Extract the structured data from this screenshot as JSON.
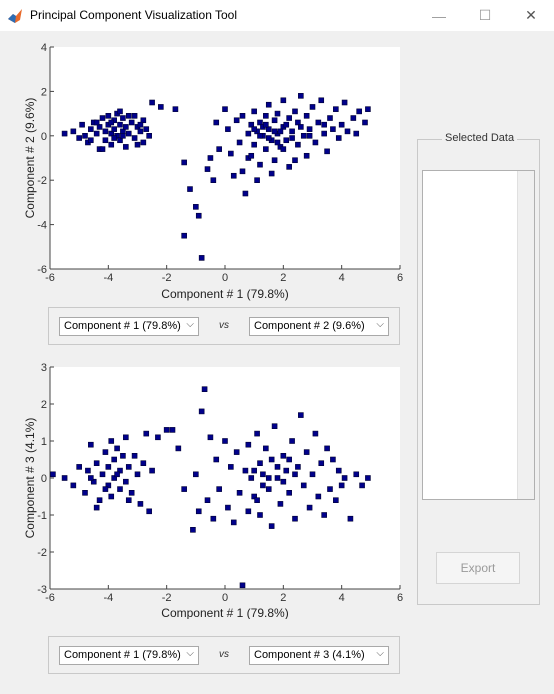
{
  "window": {
    "title": "Principal Component Visualization Tool",
    "minimize_glyph": "—",
    "maximize_glyph": "☐",
    "close_glyph": "✕"
  },
  "colors": {
    "marker": "#00008b",
    "marker_edge": "#000033",
    "bg": "#f0f0f0",
    "axes_bg": "#ffffff"
  },
  "plot1": {
    "controls": {
      "x_selected": "Component # 1 (79.8%)",
      "vs": "vs",
      "y_selected": "Component # 2 (9.6%)"
    }
  },
  "plot2": {
    "controls": {
      "x_selected": "Component # 1 (79.8%)",
      "vs": "vs",
      "y_selected": "Component # 3 (4.1%)"
    }
  },
  "selected_data": {
    "title": "Selected Data",
    "items": []
  },
  "export_button": {
    "label": "Export",
    "enabled": false
  },
  "chart_data": [
    {
      "type": "scatter",
      "xlabel": "Component # 1 (79.8%)",
      "ylabel": "Component # 2 (9.6%)",
      "xlim": [
        -6,
        6
      ],
      "ylim": [
        -6,
        4
      ],
      "xticks": [
        -6,
        -4,
        -2,
        0,
        2,
        4,
        6
      ],
      "yticks": [
        -6,
        -4,
        -2,
        0,
        2,
        4
      ],
      "grid": false,
      "points": [
        [
          -5.5,
          0.1
        ],
        [
          -5.2,
          0.2
        ],
        [
          -5.0,
          -0.1
        ],
        [
          -4.9,
          0.5
        ],
        [
          -4.8,
          0.0
        ],
        [
          -4.7,
          -0.3
        ],
        [
          -4.6,
          0.3
        ],
        [
          -4.5,
          0.6
        ],
        [
          -4.4,
          0.1
        ],
        [
          -4.3,
          -0.6
        ],
        [
          -4.3,
          0.4
        ],
        [
          -4.2,
          0.8
        ],
        [
          -4.1,
          0.2
        ],
        [
          -4.1,
          -0.2
        ],
        [
          -4.0,
          0.5
        ],
        [
          -4.0,
          0.9
        ],
        [
          -3.9,
          0.1
        ],
        [
          -3.9,
          -0.4
        ],
        [
          -3.8,
          0.7
        ],
        [
          -3.8,
          0.3
        ],
        [
          -3.7,
          0.0
        ],
        [
          -3.7,
          1.0
        ],
        [
          -3.6,
          0.5
        ],
        [
          -3.6,
          -0.2
        ],
        [
          -3.5,
          0.8
        ],
        [
          -3.5,
          0.2
        ],
        [
          -3.4,
          0.4
        ],
        [
          -3.4,
          -0.5
        ],
        [
          -3.3,
          0.9
        ],
        [
          -3.3,
          0.1
        ],
        [
          -3.2,
          0.6
        ],
        [
          -3.1,
          -0.1
        ],
        [
          -3.0,
          0.4
        ],
        [
          -2.9,
          0.2
        ],
        [
          -2.8,
          0.7
        ],
        [
          -2.8,
          -0.3
        ],
        [
          -2.7,
          0.3
        ],
        [
          -2.6,
          0.0
        ],
        [
          -2.5,
          1.5
        ],
        [
          -2.2,
          1.3
        ],
        [
          -3.6,
          1.1
        ],
        [
          -4.2,
          -0.6
        ],
        [
          -3.9,
          0.6
        ],
        [
          -4.4,
          0.6
        ],
        [
          -3.1,
          0.9
        ],
        [
          -3.0,
          -0.4
        ],
        [
          -3.8,
          -0.1
        ],
        [
          -4.6,
          -0.2
        ],
        [
          -2.9,
          0.5
        ],
        [
          -3.5,
          0.0
        ],
        [
          -1.7,
          1.2
        ],
        [
          -1.4,
          -1.2
        ],
        [
          -1.2,
          -2.4
        ],
        [
          -1.0,
          -3.2
        ],
        [
          -0.9,
          -3.6
        ],
        [
          -0.8,
          -5.5
        ],
        [
          -1.4,
          -4.5
        ],
        [
          -0.6,
          -1.5
        ],
        [
          -0.5,
          -1.0
        ],
        [
          -0.4,
          -2.0
        ],
        [
          -0.3,
          0.6
        ],
        [
          -0.2,
          -0.6
        ],
        [
          0.0,
          1.2
        ],
        [
          0.1,
          0.3
        ],
        [
          0.2,
          -0.8
        ],
        [
          0.3,
          -1.8
        ],
        [
          0.4,
          0.7
        ],
        [
          0.5,
          -0.3
        ],
        [
          0.6,
          0.9
        ],
        [
          0.7,
          -2.6
        ],
        [
          0.8,
          0.1
        ],
        [
          0.8,
          -1.0
        ],
        [
          0.9,
          0.5
        ],
        [
          1.0,
          -0.4
        ],
        [
          1.0,
          1.1
        ],
        [
          1.1,
          0.2
        ],
        [
          1.2,
          -1.3
        ],
        [
          1.2,
          0.6
        ],
        [
          1.3,
          0.0
        ],
        [
          1.4,
          0.9
        ],
        [
          1.4,
          -0.6
        ],
        [
          1.5,
          0.3
        ],
        [
          1.5,
          1.4
        ],
        [
          1.6,
          -0.2
        ],
        [
          1.7,
          0.7
        ],
        [
          1.7,
          -1.1
        ],
        [
          1.8,
          0.1
        ],
        [
          1.8,
          1.0
        ],
        [
          1.9,
          -0.5
        ],
        [
          2.0,
          0.4
        ],
        [
          2.0,
          1.6
        ],
        [
          2.1,
          -0.2
        ],
        [
          2.2,
          0.8
        ],
        [
          2.2,
          -1.4
        ],
        [
          2.3,
          0.2
        ],
        [
          2.4,
          1.1
        ],
        [
          2.5,
          -0.4
        ],
        [
          2.5,
          0.6
        ],
        [
          2.6,
          1.8
        ],
        [
          2.7,
          0.0
        ],
        [
          2.8,
          -0.9
        ],
        [
          2.8,
          0.9
        ],
        [
          2.9,
          0.3
        ],
        [
          3.0,
          1.3
        ],
        [
          3.1,
          -0.3
        ],
        [
          3.2,
          0.6
        ],
        [
          3.3,
          1.6
        ],
        [
          3.4,
          0.1
        ],
        [
          3.5,
          -0.7
        ],
        [
          3.6,
          0.8
        ],
        [
          3.7,
          0.3
        ],
        [
          3.8,
          1.2
        ],
        [
          3.9,
          -0.1
        ],
        [
          4.0,
          0.5
        ],
        [
          4.1,
          1.5
        ],
        [
          4.2,
          0.2
        ],
        [
          4.4,
          0.8
        ],
        [
          4.5,
          0.1
        ],
        [
          4.6,
          1.1
        ],
        [
          4.8,
          0.6
        ],
        [
          4.9,
          1.2
        ],
        [
          1.1,
          -2.0
        ],
        [
          0.6,
          -1.6
        ],
        [
          1.6,
          -1.7
        ],
        [
          2.4,
          -1.1
        ],
        [
          0.9,
          -0.9
        ],
        [
          1.3,
          0.4
        ],
        [
          1.9,
          0.2
        ],
        [
          2.1,
          0.5
        ],
        [
          1.5,
          -0.1
        ],
        [
          1.7,
          0.2
        ],
        [
          2.3,
          -0.1
        ],
        [
          1.2,
          0.0
        ],
        [
          1.8,
          -0.3
        ],
        [
          2.6,
          0.4
        ],
        [
          1.0,
          0.3
        ],
        [
          1.4,
          0.5
        ],
        [
          2.0,
          -0.6
        ],
        [
          2.9,
          0.0
        ],
        [
          3.4,
          0.5
        ]
      ]
    },
    {
      "type": "scatter",
      "xlabel": "Component # 1 (79.8%)",
      "ylabel": "Component # 3 (4.1%)",
      "xlim": [
        -6,
        6
      ],
      "ylim": [
        -3,
        3
      ],
      "xticks": [
        -6,
        -4,
        -2,
        0,
        2,
        4,
        6
      ],
      "yticks": [
        -3,
        -2,
        -1,
        0,
        1,
        2,
        3
      ],
      "grid": false,
      "points": [
        [
          -5.9,
          0.1
        ],
        [
          -5.5,
          0.0
        ],
        [
          -5.2,
          -0.2
        ],
        [
          -5.0,
          0.3
        ],
        [
          -4.8,
          -0.4
        ],
        [
          -4.7,
          0.2
        ],
        [
          -4.6,
          0.9
        ],
        [
          -4.5,
          -0.1
        ],
        [
          -4.4,
          0.4
        ],
        [
          -4.3,
          -0.6
        ],
        [
          -4.2,
          0.1
        ],
        [
          -4.1,
          0.7
        ],
        [
          -4.0,
          -0.2
        ],
        [
          -4.0,
          0.3
        ],
        [
          -3.9,
          -0.5
        ],
        [
          -3.8,
          0.5
        ],
        [
          -3.8,
          0.0
        ],
        [
          -3.7,
          0.8
        ],
        [
          -3.6,
          -0.3
        ],
        [
          -3.6,
          0.2
        ],
        [
          -3.5,
          0.6
        ],
        [
          -3.4,
          -0.1
        ],
        [
          -3.4,
          1.1
        ],
        [
          -3.3,
          0.3
        ],
        [
          -3.2,
          -0.4
        ],
        [
          -3.1,
          0.6
        ],
        [
          -3.0,
          0.1
        ],
        [
          -2.9,
          -0.7
        ],
        [
          -2.8,
          0.4
        ],
        [
          -2.7,
          1.2
        ],
        [
          -2.6,
          -0.9
        ],
        [
          -2.5,
          0.2
        ],
        [
          -2.3,
          1.1
        ],
        [
          -2.0,
          1.3
        ],
        [
          -4.4,
          -0.8
        ],
        [
          -3.9,
          1.0
        ],
        [
          -4.6,
          0.0
        ],
        [
          -3.3,
          -0.6
        ],
        [
          -3.7,
          0.1
        ],
        [
          -4.1,
          -0.3
        ],
        [
          -1.8,
          1.3
        ],
        [
          -1.6,
          0.8
        ],
        [
          -1.4,
          -0.3
        ],
        [
          -1.1,
          -1.4
        ],
        [
          -1.0,
          0.1
        ],
        [
          -0.9,
          -0.9
        ],
        [
          -0.8,
          1.8
        ],
        [
          -0.7,
          2.4
        ],
        [
          -0.6,
          -0.6
        ],
        [
          -0.5,
          1.1
        ],
        [
          -0.4,
          -1.1
        ],
        [
          -0.3,
          0.5
        ],
        [
          -0.2,
          -0.3
        ],
        [
          0.0,
          1.0
        ],
        [
          0.1,
          -0.8
        ],
        [
          0.2,
          0.3
        ],
        [
          0.3,
          -1.2
        ],
        [
          0.4,
          0.7
        ],
        [
          0.5,
          -0.4
        ],
        [
          0.6,
          -2.9
        ],
        [
          0.7,
          0.2
        ],
        [
          0.8,
          -0.9
        ],
        [
          0.8,
          0.9
        ],
        [
          0.9,
          0.0
        ],
        [
          1.0,
          -0.5
        ],
        [
          1.1,
          1.2
        ],
        [
          1.2,
          0.4
        ],
        [
          1.2,
          -1.0
        ],
        [
          1.3,
          0.1
        ],
        [
          1.4,
          0.8
        ],
        [
          1.5,
          -0.3
        ],
        [
          1.6,
          0.5
        ],
        [
          1.6,
          -1.3
        ],
        [
          1.7,
          1.4
        ],
        [
          1.8,
          0.0
        ],
        [
          1.9,
          -0.7
        ],
        [
          2.0,
          0.6
        ],
        [
          2.1,
          0.2
        ],
        [
          2.2,
          -0.4
        ],
        [
          2.3,
          1.0
        ],
        [
          2.4,
          -1.1
        ],
        [
          2.5,
          0.3
        ],
        [
          2.6,
          1.7
        ],
        [
          2.7,
          -0.2
        ],
        [
          2.8,
          0.7
        ],
        [
          2.9,
          -0.8
        ],
        [
          3.0,
          0.1
        ],
        [
          3.1,
          1.2
        ],
        [
          3.2,
          -0.5
        ],
        [
          3.3,
          0.4
        ],
        [
          3.4,
          -1.0
        ],
        [
          3.5,
          0.8
        ],
        [
          3.6,
          -0.3
        ],
        [
          3.7,
          0.5
        ],
        [
          3.8,
          -0.6
        ],
        [
          3.9,
          0.2
        ],
        [
          4.0,
          -0.2
        ],
        [
          4.1,
          0.0
        ],
        [
          4.3,
          -1.1
        ],
        [
          4.5,
          0.1
        ],
        [
          4.7,
          -0.2
        ],
        [
          4.9,
          0.0
        ],
        [
          1.0,
          0.2
        ],
        [
          1.5,
          0.0
        ],
        [
          2.0,
          -0.1
        ],
        [
          1.3,
          -0.2
        ],
        [
          1.8,
          0.3
        ],
        [
          2.4,
          0.1
        ],
        [
          1.1,
          -0.6
        ],
        [
          2.2,
          0.5
        ]
      ]
    }
  ]
}
